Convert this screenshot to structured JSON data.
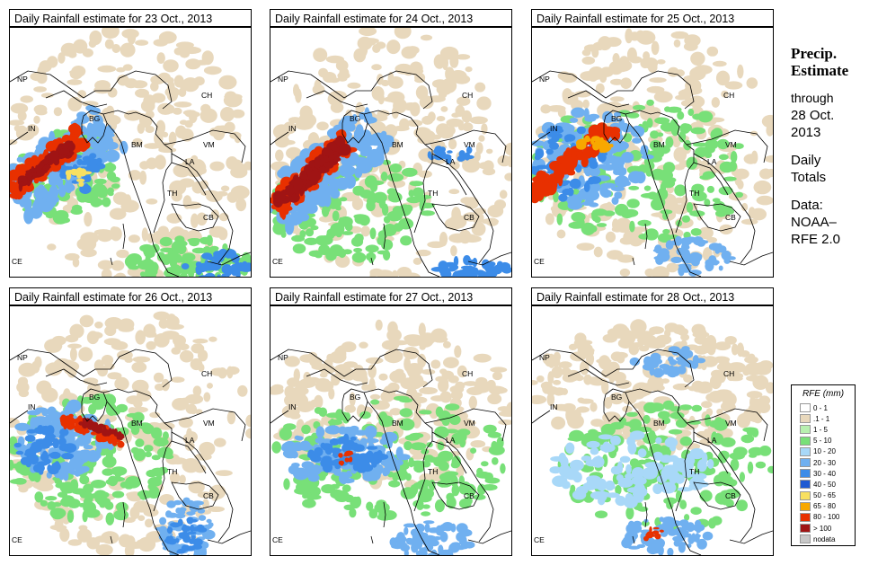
{
  "panels": [
    {
      "title": "Daily Rainfall estimate for  23 Oct., 2013"
    },
    {
      "title": "Daily Rainfall estimate for  24 Oct., 2013"
    },
    {
      "title": "Daily Rainfall estimate for  25 Oct., 2013"
    },
    {
      "title": "Daily Rainfall estimate for  26 Oct., 2013"
    },
    {
      "title": "Daily Rainfall estimate for  27 Oct., 2013"
    },
    {
      "title": "Daily Rainfall estimate for  28 Oct., 2013"
    }
  ],
  "country_labels": [
    "NP",
    "CH",
    "IN",
    "BG",
    "BM",
    "VM",
    "LA",
    "TH",
    "CB",
    "CE"
  ],
  "sidebar": {
    "heading1": "Precip.",
    "heading2": "Estimate",
    "through": "through",
    "date1": "28 Oct.",
    "date2": "2013",
    "daily": "Daily",
    "totals": "Totals",
    "data": "Data:",
    "source1": "NOAA–",
    "source2": "RFE 2.0"
  },
  "legend": {
    "title": "RFE (mm)",
    "items": [
      {
        "label": "0 - 1",
        "color": "#ffffff"
      },
      {
        "label": ".1 - 1",
        "color": "#e8d8bc"
      },
      {
        "label": "1 - 5",
        "color": "#b8f0b0"
      },
      {
        "label": "5 - 10",
        "color": "#78e078"
      },
      {
        "label": "10 - 20",
        "color": "#a8d8f8"
      },
      {
        "label": "20 - 30",
        "color": "#70b0f0"
      },
      {
        "label": "30 - 40",
        "color": "#3c8ce8"
      },
      {
        "label": "40 - 50",
        "color": "#1e5ad2"
      },
      {
        "label": "50 - 65",
        "color": "#f8e060"
      },
      {
        "label": "65 - 80",
        "color": "#f8a800"
      },
      {
        "label": "80 - 100",
        "color": "#e83000"
      },
      {
        "label": "> 100",
        "color": "#a01414"
      },
      {
        "label": "nodata",
        "color": "#c8c8c8"
      }
    ]
  }
}
